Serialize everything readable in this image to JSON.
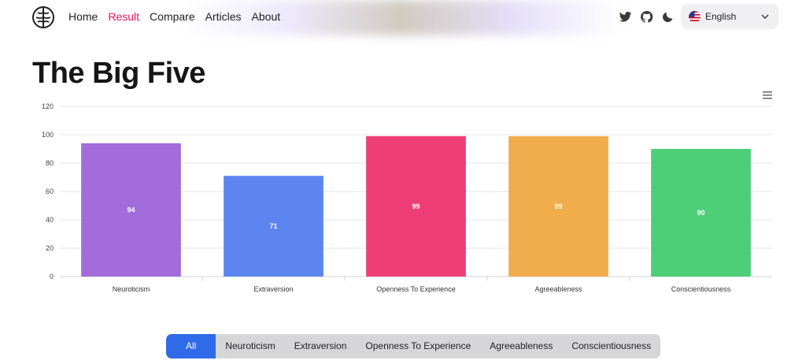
{
  "header": {
    "nav": [
      "Home",
      "Result",
      "Compare",
      "Articles",
      "About"
    ],
    "active_nav": "Result",
    "language": "English",
    "icons": [
      "brain-logo-icon",
      "twitter-icon",
      "github-icon",
      "moon-icon",
      "us-flag-icon",
      "chevron-down-icon"
    ]
  },
  "page": {
    "title": "The Big Five"
  },
  "chart_data": {
    "type": "bar",
    "categories": [
      "Neuroticism",
      "Extraversion",
      "Openness To Experience",
      "Agreeableness",
      "Conscientiousness"
    ],
    "values": [
      94,
      71,
      99,
      99,
      90
    ],
    "colors": [
      "#9b5fd8",
      "#4f7bef",
      "#ee2e6b",
      "#f0a63d",
      "#3ecb6c"
    ],
    "ylim": [
      0,
      120
    ],
    "yticks": [
      0,
      20,
      40,
      60,
      80,
      100,
      120
    ],
    "grid": true,
    "data_labels": true
  },
  "filters": {
    "options": [
      "All",
      "Neuroticism",
      "Extraversion",
      "Openness To Experience",
      "Agreeableness",
      "Conscientiousness"
    ],
    "selected": "All"
  }
}
